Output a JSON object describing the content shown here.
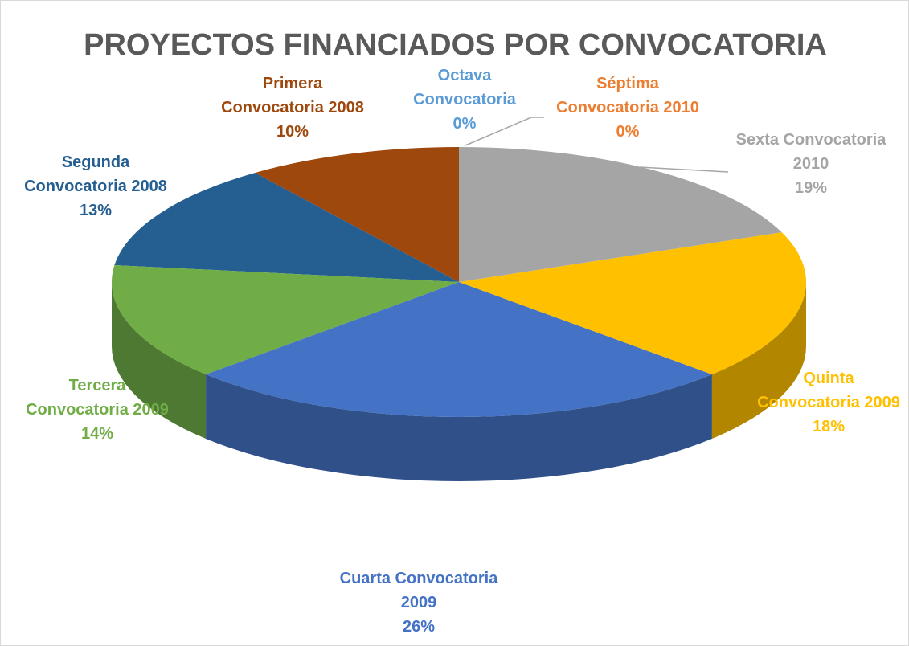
{
  "chart_data": {
    "type": "pie",
    "title": "PROYECTOS FINANCIADOS POR CONVOCATORIA",
    "categories": [
      "Primera Convocatoria 2008",
      "Segunda Convocatoria 2008",
      "Tercera Convocatoria 2009",
      "Cuarta Convocatoria 2009",
      "Quinta Convocatoria 2009",
      "Sexta Convocatoria 2010",
      "Séptima Convocatoria 2010",
      "Octava Convocatoria"
    ],
    "values": [
      10,
      13,
      14,
      26,
      18,
      19,
      0,
      0
    ],
    "value_labels": [
      "10%",
      "13%",
      "14%",
      "26%",
      "18%",
      "19%",
      "0%",
      "0%"
    ],
    "colors": [
      "#9e480e",
      "#255e91",
      "#70ad47",
      "#4472c4",
      "#ffc000",
      "#a5a5a5",
      "#ed7d31",
      "#5b9bd5"
    ]
  }
}
